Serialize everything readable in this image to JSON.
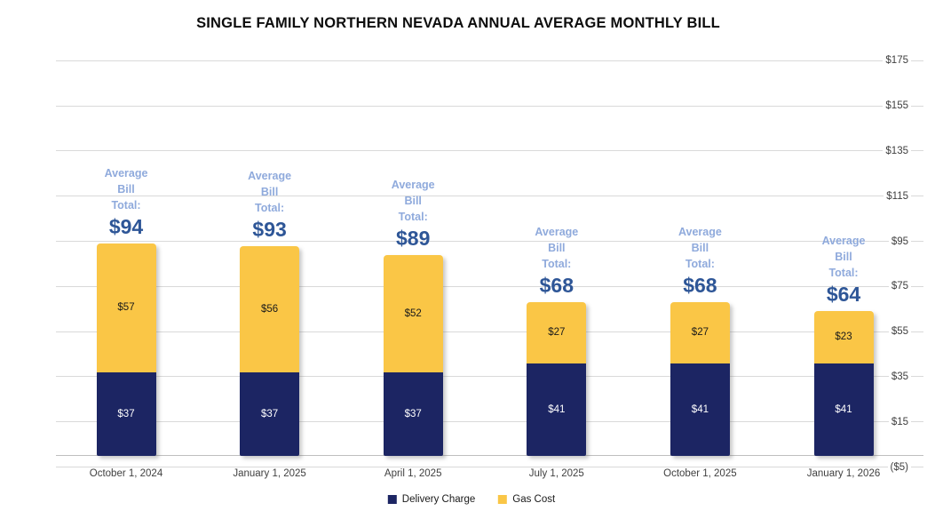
{
  "chart_data": {
    "type": "bar",
    "stacked": true,
    "title": "SINGLE FAMILY NORTHERN NEVADA ANNUAL AVERAGE MONTHLY BILL",
    "categories": [
      "October 1, 2024",
      "January 1, 2025",
      "April 1, 2025",
      "July 1, 2025",
      "October 1, 2025",
      "January 1, 2026"
    ],
    "series": [
      {
        "name": "Delivery Charge",
        "color": "#1C2563",
        "label_color": "#ffffff",
        "values": [
          37,
          37,
          37,
          41,
          41,
          41
        ]
      },
      {
        "name": "Gas Cost",
        "color": "#FAC646",
        "label_color": "#1a1a1a",
        "values": [
          57,
          56,
          52,
          27,
          27,
          23
        ]
      }
    ],
    "totals": [
      94,
      93,
      89,
      68,
      68,
      64
    ],
    "value_prefix": "$",
    "annotation": {
      "lines": [
        "Average",
        "Bill",
        "Total:"
      ],
      "line_color": "#8FAADC",
      "total_color": "#2E5697",
      "totals_text": [
        "$94",
        "$93",
        "$89",
        "$68",
        "$68",
        "$64"
      ]
    },
    "y_axis": {
      "min": -5,
      "max": 175,
      "major_unit": 20,
      "tick_values": [
        175,
        155,
        135,
        115,
        95,
        75,
        55,
        35,
        15,
        -5
      ],
      "tick_labels": [
        "$175",
        "$155",
        "$135",
        "$115",
        "$95",
        "$75",
        "$55",
        "$35",
        "$15",
        "($5)"
      ],
      "zero_axis_line": true
    },
    "grid": true,
    "legend": {
      "position": "bottom",
      "items": [
        {
          "label": "Delivery Charge",
          "color": "#1C2563"
        },
        {
          "label": "Gas Cost",
          "color": "#FAC646"
        }
      ]
    },
    "colors": {
      "gridline": "#d9d9d9",
      "zero_axis": "#bfbfbf",
      "axis_text": "#404040",
      "title_text": "#0d0d0d"
    }
  }
}
